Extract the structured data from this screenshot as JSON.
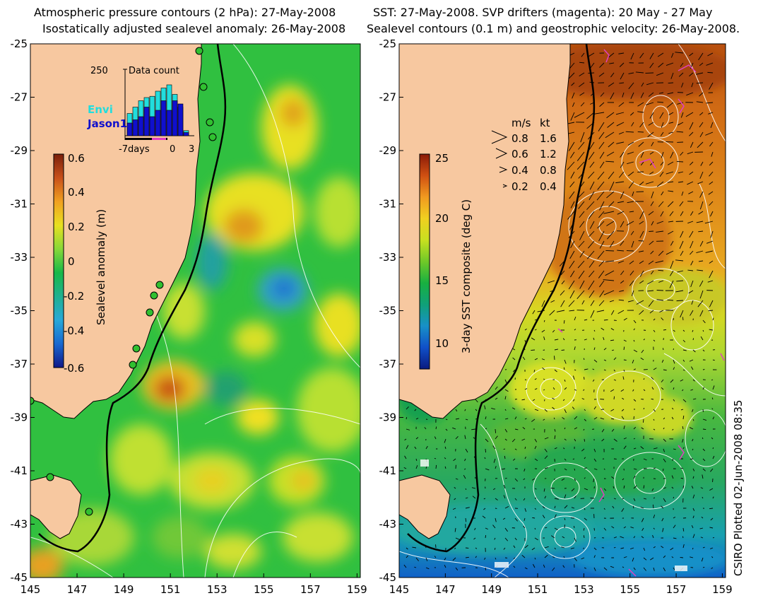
{
  "left_panel": {
    "title_line1": "Atmospheric pressure contours (2 hPa): 27-May-2008",
    "title_line2": "Isostatically adjusted sealevel anomaly: 26-May-2008",
    "x_ticks": [
      "145",
      "147",
      "149",
      "151",
      "153",
      "155",
      "157",
      "159"
    ],
    "y_ticks": [
      "-25",
      "-27",
      "-29",
      "-31",
      "-33",
      "-35",
      "-37",
      "-39",
      "-41",
      "-43",
      "-45"
    ],
    "colorbar": {
      "label": "Sealevel anomaly (m)",
      "ticks": [
        "0.6",
        "0.4",
        "0.2",
        "0",
        "-0.2",
        "-0.4",
        "-0.6"
      ],
      "colors": [
        "#7a1f0a",
        "#c8501a",
        "#f0a020",
        "#e8e020",
        "#88d838",
        "#18b848",
        "#20b090",
        "#28a8d8",
        "#1868d0",
        "#101888"
      ]
    },
    "inset": {
      "title": "Data count",
      "max_label": "250",
      "x_labels": [
        "-7days",
        "0",
        "3"
      ],
      "legend": [
        {
          "name": "Envi",
          "color": "#22dddd"
        },
        {
          "name": "Jason1",
          "color": "#1010cc"
        }
      ],
      "bars": [
        {
          "envi": 0.35,
          "jason": 0.2
        },
        {
          "envi": 0.45,
          "jason": 0.25
        },
        {
          "envi": 0.55,
          "jason": 0.3
        },
        {
          "envi": 0.6,
          "jason": 0.45
        },
        {
          "envi": 0.62,
          "jason": 0.3
        },
        {
          "envi": 0.7,
          "jason": 0.4
        },
        {
          "envi": 0.75,
          "jason": 0.55
        },
        {
          "envi": 0.8,
          "jason": 0.4
        },
        {
          "envi": 0.65,
          "jason": 0.55
        },
        {
          "envi": 0.45,
          "jason": 0.5
        },
        {
          "envi": 0.08,
          "jason": 0.05
        }
      ]
    }
  },
  "right_panel": {
    "title_line1": "SST: 27-May-2008. SVP drifters (magenta): 20 May - 27 May",
    "title_line2": "Sealevel contours (0.1 m) and geostrophic velocity: 26-May-2008.",
    "x_ticks": [
      "145",
      "147",
      "149",
      "151",
      "153",
      "155",
      "157",
      "159"
    ],
    "y_ticks": [
      "-25",
      "-27",
      "-29",
      "-31",
      "-33",
      "-35",
      "-37",
      "-39",
      "-41",
      "-43",
      "-45"
    ],
    "colorbar": {
      "label": "3-day SST composite (deg C)",
      "ticks": [
        "25",
        "20",
        "15",
        "10"
      ],
      "colors": [
        "#8a1a08",
        "#d05012",
        "#f09a20",
        "#f0d020",
        "#c8e020",
        "#70c828",
        "#18b040",
        "#10a078",
        "#1890c8",
        "#1050c8",
        "#0a1a80"
      ]
    },
    "velocity_legend": {
      "header_ms": "m/s",
      "header_kt": "kt",
      "rows": [
        {
          "ms": "0.8",
          "kt": "1.6"
        },
        {
          "ms": "0.6",
          "kt": "1.2"
        },
        {
          "ms": "0.4",
          "kt": "0.8"
        },
        {
          "ms": "0.2",
          "kt": "0.4"
        }
      ]
    }
  },
  "credit": "CSIRO Plotted 02-Jun-2008 08:35",
  "colors": {
    "land": "#f7c8a0",
    "coast_line": "#000000",
    "contour": "#ffffff",
    "drifter": "#e040c0",
    "tide_gauge": "#30c030"
  }
}
